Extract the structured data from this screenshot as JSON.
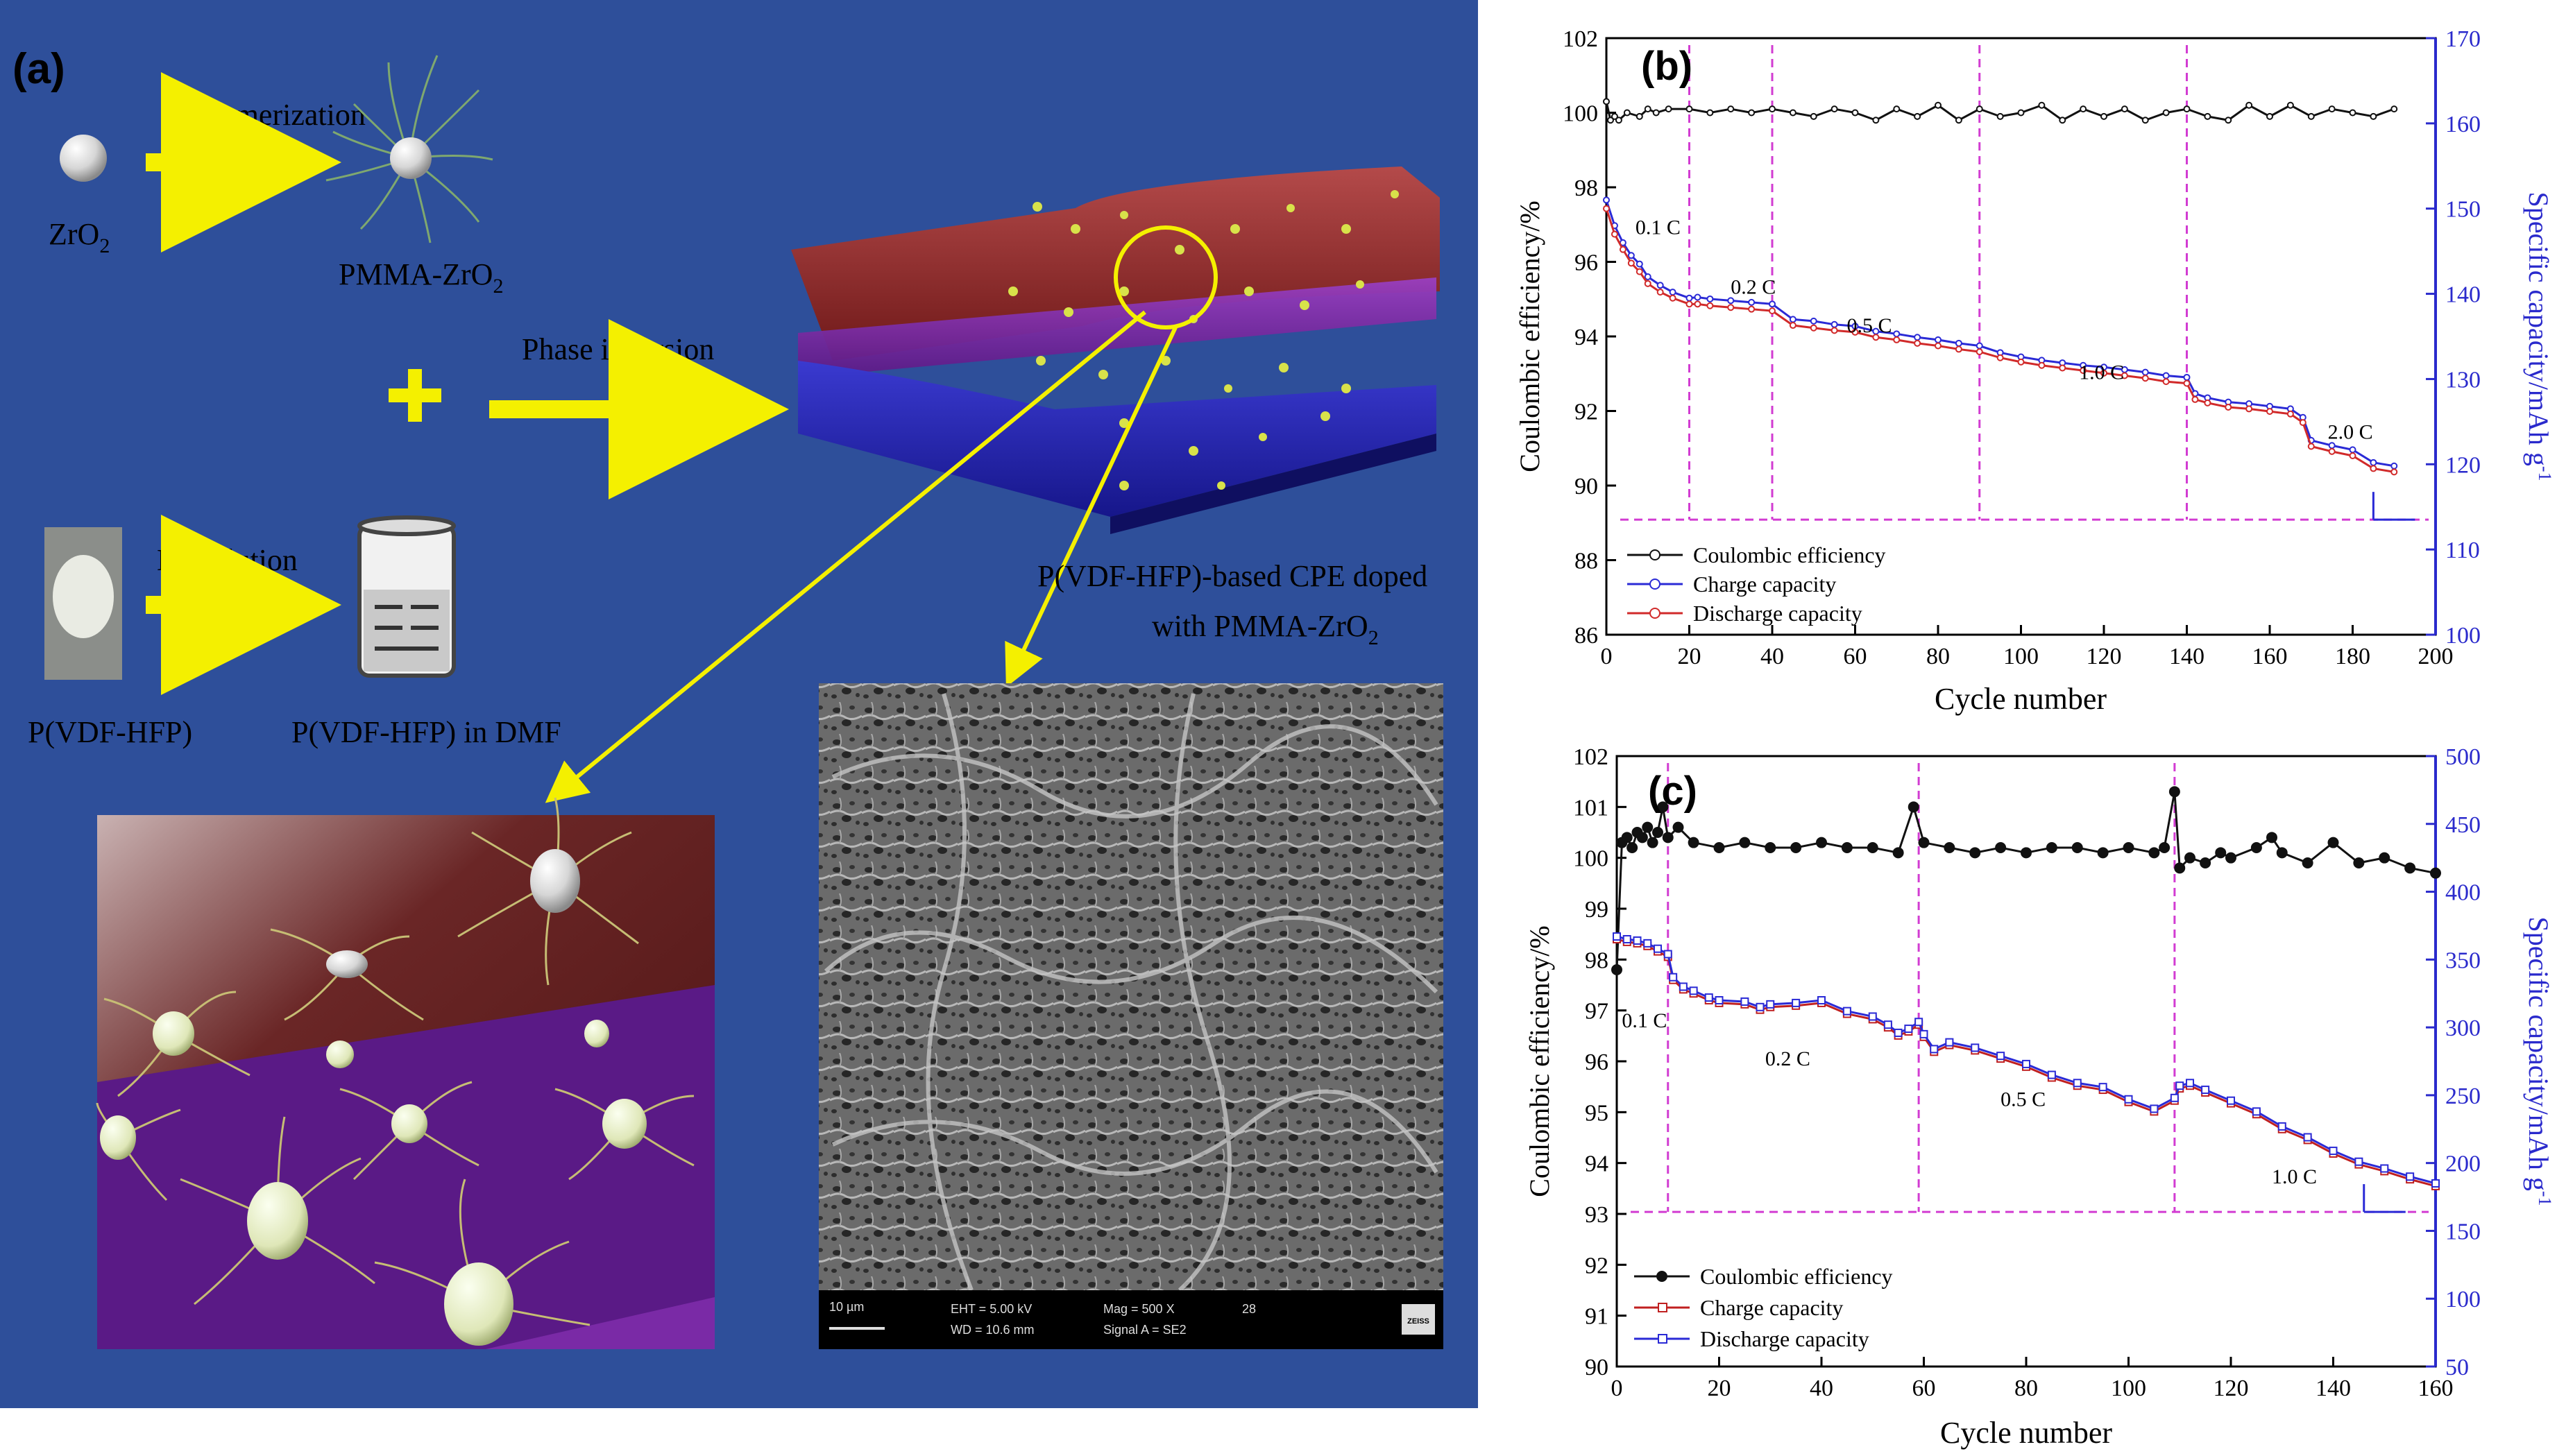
{
  "panel_a": {
    "label": "(a)",
    "zro2": "ZrO",
    "zro2_sub": "2",
    "polymerization": "Polymerization",
    "pmma_zro2": "PMMA-ZrO",
    "pmma_zro2_sub": "2",
    "plus": "+",
    "phase_inversion": "Phase inversion",
    "dissolution": "Dissolution",
    "pvdf": "P(VDF-HFP)",
    "pvdf_dmf": "P(VDF-HFP) in DMF",
    "cpe_line1": "P(VDF-HFP)-based CPE doped",
    "cpe_line2": "with PMMA-ZrO",
    "cpe_sub": "2",
    "sem_scale": "10 µm",
    "sem_eht": "EHT = 5.00 kV",
    "sem_wd": "WD = 10.6 mm",
    "sem_mag": "Mag = 500 X",
    "sem_signal": "Signal A = SE2",
    "sem_number": "28",
    "sem_logo": "ZEISS"
  },
  "colors": {
    "panel_bg": "#2e4f9a",
    "arrow": "#f4f000",
    "coulombic": "#111111",
    "charge_b": "#2a2ad6",
    "discharge_b": "#d12a2a",
    "right_axis": "#2a2acc",
    "magenta": "#d23cd2"
  },
  "chart_data": [
    {
      "id": "b",
      "type": "line",
      "panel_label": "(b)",
      "xlabel": "Cycle number",
      "ylabel_left": "Coulombic efficiency/%",
      "ylabel_right": "Specific capacity/mAh g",
      "ylabel_right_sup": "-1",
      "xlim": [
        0,
        200
      ],
      "ylim_left": [
        86,
        102
      ],
      "ylim_right": [
        100,
        170
      ],
      "xticks": [
        "0",
        "20",
        "40",
        "60",
        "80",
        "100",
        "120",
        "140",
        "160",
        "180",
        "200"
      ],
      "yticks_left": [
        "86",
        "88",
        "90",
        "92",
        "94",
        "96",
        "98",
        "100",
        "102"
      ],
      "yticks_right": [
        "100",
        "110",
        "120",
        "130",
        "140",
        "150",
        "160",
        "170"
      ],
      "rate_labels": [
        {
          "text": "0.1 C",
          "x": 7,
          "y": 147
        },
        {
          "text": "0.2 C",
          "x": 30,
          "y": 140
        },
        {
          "text": "0.5 C",
          "x": 58,
          "y": 135.5
        },
        {
          "text": "1.0 C",
          "x": 114,
          "y": 130
        },
        {
          "text": "2.0 C",
          "x": 174,
          "y": 123
        }
      ],
      "dividers": [
        20,
        40,
        90,
        140
      ],
      "legend": [
        "Coulombic efficiency",
        "Charge capacity",
        "Discharge capacity"
      ],
      "series": [
        {
          "name": "Coulombic efficiency",
          "axis": "left",
          "x": [
            0,
            1,
            2,
            3,
            5,
            8,
            10,
            12,
            15,
            20,
            25,
            30,
            35,
            40,
            45,
            50,
            55,
            60,
            65,
            70,
            75,
            80,
            85,
            90,
            95,
            100,
            105,
            110,
            115,
            120,
            125,
            130,
            135,
            140,
            145,
            150,
            155,
            160,
            165,
            170,
            175,
            180,
            185,
            190
          ],
          "values": [
            100.3,
            99.8,
            99.9,
            99.8,
            100.0,
            99.9,
            100.1,
            100.0,
            100.1,
            100.1,
            100.0,
            100.1,
            100.0,
            100.1,
            100.0,
            99.9,
            100.1,
            100.0,
            99.8,
            100.1,
            99.9,
            100.2,
            99.8,
            100.1,
            99.9,
            100.0,
            100.2,
            99.8,
            100.1,
            99.9,
            100.1,
            99.8,
            100.0,
            100.1,
            99.9,
            99.8,
            100.2,
            99.9,
            100.2,
            99.9,
            100.1,
            100.0,
            99.9,
            100.1
          ]
        },
        {
          "name": "Charge capacity",
          "axis": "right",
          "x": [
            0,
            2,
            4,
            6,
            8,
            10,
            13,
            16,
            20,
            22,
            25,
            30,
            35,
            40,
            45,
            50,
            55,
            60,
            65,
            70,
            75,
            80,
            85,
            90,
            95,
            100,
            105,
            110,
            115,
            120,
            125,
            130,
            135,
            140,
            142,
            145,
            150,
            155,
            160,
            165,
            168,
            170,
            175,
            180,
            185,
            190
          ],
          "values": [
            151,
            148,
            146,
            144.5,
            143.5,
            142,
            141,
            140.2,
            139.5,
            139.6,
            139.4,
            139.2,
            139,
            138.8,
            137,
            136.8,
            136.4,
            136.2,
            135.6,
            135.3,
            134.9,
            134.6,
            134.2,
            133.9,
            133.1,
            132.6,
            132.2,
            131.9,
            131.6,
            131.4,
            131.1,
            130.8,
            130.4,
            130.2,
            128.3,
            127.8,
            127.3,
            127.1,
            126.8,
            126.5,
            125.5,
            122.8,
            122.2,
            121.7,
            120.2,
            119.8
          ]
        },
        {
          "name": "Discharge capacity",
          "axis": "right",
          "x": [
            0,
            2,
            4,
            6,
            8,
            10,
            13,
            16,
            20,
            22,
            25,
            30,
            35,
            40,
            45,
            50,
            55,
            60,
            65,
            70,
            75,
            80,
            85,
            90,
            95,
            100,
            105,
            110,
            115,
            120,
            125,
            130,
            135,
            140,
            142,
            145,
            150,
            155,
            160,
            165,
            168,
            170,
            175,
            180,
            185,
            190
          ],
          "values": [
            150,
            147,
            145.2,
            143.6,
            142.6,
            141.2,
            140.2,
            139.5,
            138.8,
            138.8,
            138.6,
            138.4,
            138.2,
            138,
            136.3,
            136,
            135.7,
            135.5,
            134.9,
            134.6,
            134.2,
            133.9,
            133.5,
            133.2,
            132.5,
            132,
            131.6,
            131.3,
            131,
            130.7,
            130.4,
            130.1,
            129.7,
            129.5,
            127.6,
            127.2,
            126.7,
            126.5,
            126.2,
            125.9,
            124.9,
            122.1,
            121.5,
            121,
            119.5,
            119.1
          ]
        }
      ],
      "threshold_y": 113.5,
      "threshold_end_x": 185
    },
    {
      "id": "c",
      "type": "line",
      "panel_label": "(c)",
      "xlabel": "Cycle number",
      "ylabel_left": "Coulombic efficiency/%",
      "ylabel_right": "Specific capacity/mAh g",
      "ylabel_right_sup": "-1",
      "xlim": [
        0,
        160
      ],
      "ylim_left": [
        90,
        102
      ],
      "ylim_right": [
        50,
        500
      ],
      "xticks": [
        "0",
        "20",
        "40",
        "60",
        "80",
        "100",
        "120",
        "140",
        "160"
      ],
      "yticks_left": [
        "90",
        "91",
        "92",
        "93",
        "94",
        "95",
        "96",
        "97",
        "98",
        "99",
        "100",
        "101",
        "102"
      ],
      "yticks_right": [
        "50",
        "100",
        "150",
        "200",
        "250",
        "300",
        "350",
        "400",
        "450",
        "500"
      ],
      "rate_labels": [
        {
          "text": "0.1 C",
          "x": 1,
          "y": 300
        },
        {
          "text": "0.2 C",
          "x": 29,
          "y": 272
        },
        {
          "text": "0.5 C",
          "x": 75,
          "y": 242
        },
        {
          "text": "1.0 C",
          "x": 128,
          "y": 185
        }
      ],
      "dividers": [
        10,
        59,
        109
      ],
      "legend": [
        "Coulombic efficiency",
        "Charge capacity",
        "Discharge capacity"
      ],
      "series": [
        {
          "name": "Coulombic efficiency",
          "axis": "left",
          "x": [
            0,
            1,
            2,
            3,
            4,
            5,
            6,
            7,
            8,
            9,
            10,
            12,
            15,
            20,
            25,
            30,
            35,
            40,
            45,
            50,
            55,
            58,
            60,
            65,
            70,
            75,
            80,
            85,
            90,
            95,
            100,
            105,
            107,
            109,
            110,
            112,
            115,
            118,
            120,
            125,
            128,
            130,
            135,
            140,
            145,
            150,
            155,
            160
          ],
          "values": [
            97.8,
            100.3,
            100.4,
            100.2,
            100.5,
            100.4,
            100.6,
            100.3,
            100.5,
            101.0,
            100.4,
            100.6,
            100.3,
            100.2,
            100.3,
            100.2,
            100.2,
            100.3,
            100.2,
            100.2,
            100.1,
            101.0,
            100.3,
            100.2,
            100.1,
            100.2,
            100.1,
            100.2,
            100.2,
            100.1,
            100.2,
            100.1,
            100.2,
            101.3,
            99.8,
            100.0,
            99.9,
            100.1,
            100.0,
            100.2,
            100.4,
            100.1,
            99.9,
            100.3,
            99.9,
            100.0,
            99.8,
            99.7
          ]
        },
        {
          "name": "Charge capacity",
          "axis": "right",
          "x": [
            0,
            2,
            4,
            6,
            8,
            10,
            11,
            13,
            15,
            18,
            20,
            25,
            28,
            30,
            35,
            40,
            45,
            50,
            53,
            55,
            57,
            59,
            60,
            62,
            65,
            70,
            75,
            80,
            85,
            90,
            95,
            100,
            105,
            109,
            110,
            112,
            115,
            120,
            125,
            130,
            135,
            140,
            145,
            150,
            155,
            160
          ],
          "values": [
            365,
            363,
            362,
            360,
            356,
            352,
            335,
            328,
            325,
            320,
            318,
            317,
            313,
            315,
            316,
            318,
            310,
            306,
            300,
            294,
            297,
            302,
            293,
            282,
            287,
            283,
            277,
            271,
            263,
            257,
            254,
            245,
            238,
            246,
            255,
            257,
            252,
            244,
            236,
            225,
            217,
            207,
            199,
            194,
            188,
            183
          ]
        },
        {
          "name": "Discharge capacity",
          "axis": "right",
          "x": [
            0,
            2,
            4,
            6,
            8,
            10,
            11,
            13,
            15,
            18,
            20,
            25,
            28,
            30,
            35,
            40,
            45,
            50,
            53,
            55,
            57,
            59,
            60,
            62,
            65,
            70,
            75,
            80,
            85,
            90,
            95,
            100,
            105,
            109,
            110,
            112,
            115,
            120,
            125,
            130,
            135,
            140,
            145,
            150,
            155,
            160
          ],
          "values": [
            367,
            365,
            364,
            362,
            358,
            354,
            337,
            330,
            327,
            322,
            320,
            319,
            315,
            317,
            318,
            320,
            312,
            308,
            302,
            296,
            299,
            304,
            295,
            284,
            289,
            285,
            279,
            273,
            265,
            259,
            256,
            247,
            240,
            248,
            257,
            259,
            254,
            246,
            238,
            227,
            219,
            209,
            201,
            196,
            190,
            185
          ]
        }
      ],
      "threshold_y": 164,
      "threshold_end_x": 146
    }
  ]
}
